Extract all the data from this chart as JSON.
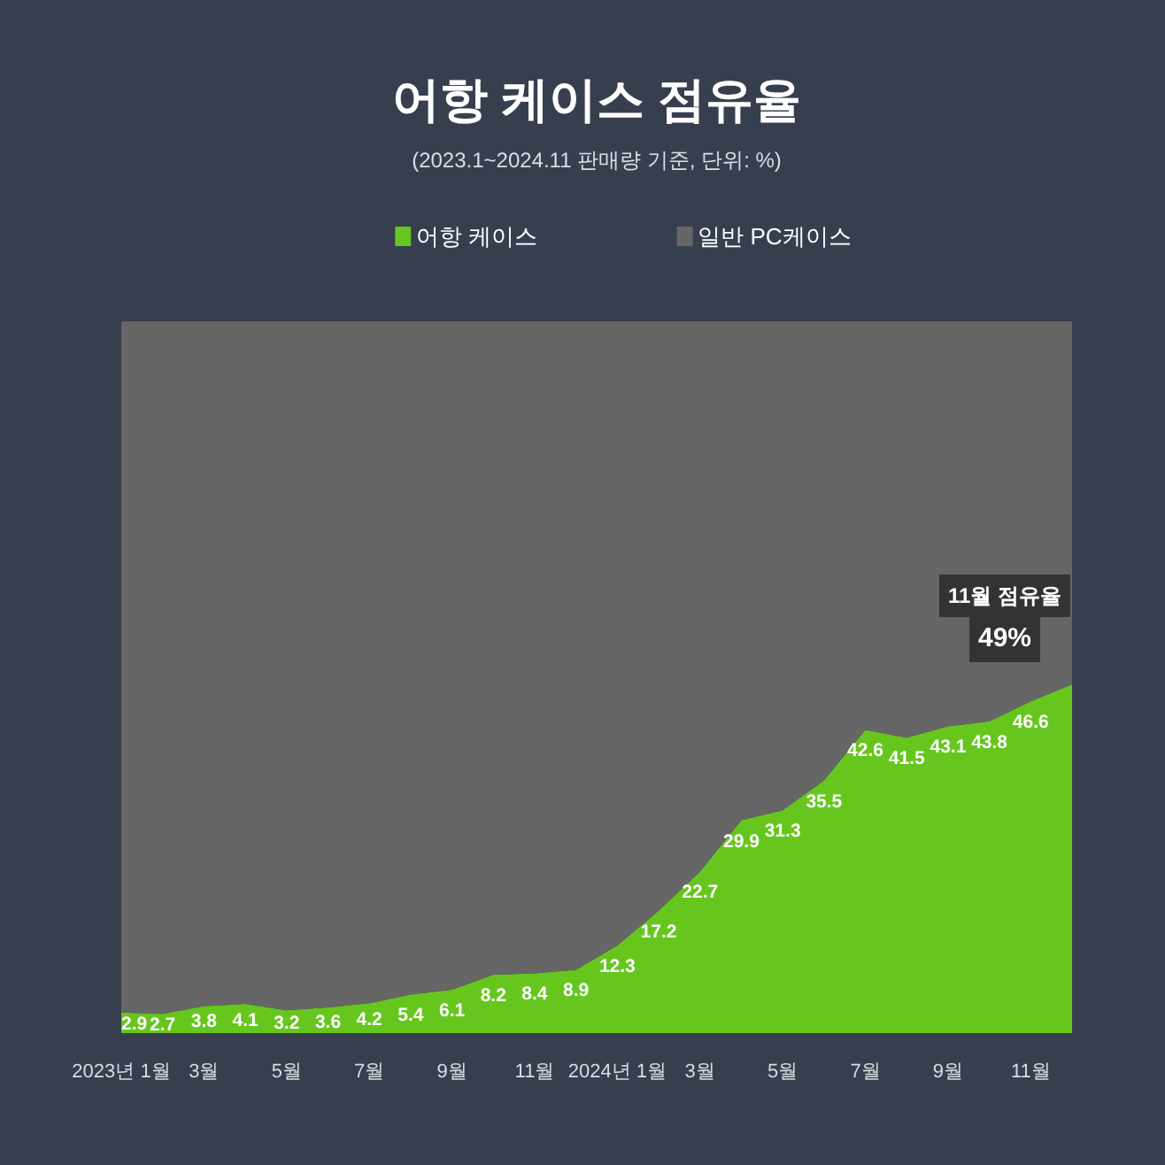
{
  "chart_data": {
    "type": "area",
    "title": "어항 케이스 점유율",
    "subtitle": "(2023.1~2024.11 판매량 기준, 단위: %)",
    "categories": [
      "2023년 1월",
      null,
      "3월",
      null,
      "5월",
      null,
      "7월",
      null,
      "9월",
      null,
      "11월",
      null,
      "2024년 1월",
      null,
      "3월",
      null,
      "5월",
      null,
      "7월",
      null,
      "9월",
      null,
      "11월",
      null
    ],
    "stacked": true,
    "series": [
      {
        "name": "어항 케이스",
        "color": "#66c61e",
        "values": [
          2.9,
          2.7,
          3.8,
          4.1,
          3.2,
          3.6,
          4.2,
          5.4,
          6.1,
          8.2,
          8.4,
          8.9,
          12.3,
          17.2,
          22.7,
          29.9,
          31.3,
          35.5,
          42.6,
          41.5,
          43.1,
          43.8,
          46.6,
          49
        ],
        "value_labels": [
          "2.9",
          "2.7",
          "3.8",
          "4.1",
          "3.2",
          "3.6",
          "4.2",
          "5.4",
          "6.1",
          "8.2",
          "8.4",
          "8.9",
          "12.3",
          "17.2",
          "22.7",
          "29.9",
          "31.3",
          "35.5",
          "42.6",
          "41.5",
          "43.1",
          "43.8",
          "46.6",
          "49%"
        ]
      },
      {
        "name": "일반 PC케이스",
        "color": "#666666",
        "values": [
          97.1,
          97.3,
          96.2,
          95.9,
          96.8,
          96.4,
          95.8,
          94.6,
          93.9,
          91.8,
          91.6,
          91.1,
          87.7,
          82.8,
          77.3,
          70.1,
          68.7,
          64.5,
          57.4,
          58.5,
          56.9,
          56.2,
          53.4,
          51
        ]
      }
    ],
    "tick_labels": "x",
    "legend": "top",
    "grid": false,
    "annotations": [
      "11월 점유율"
    ]
  }
}
